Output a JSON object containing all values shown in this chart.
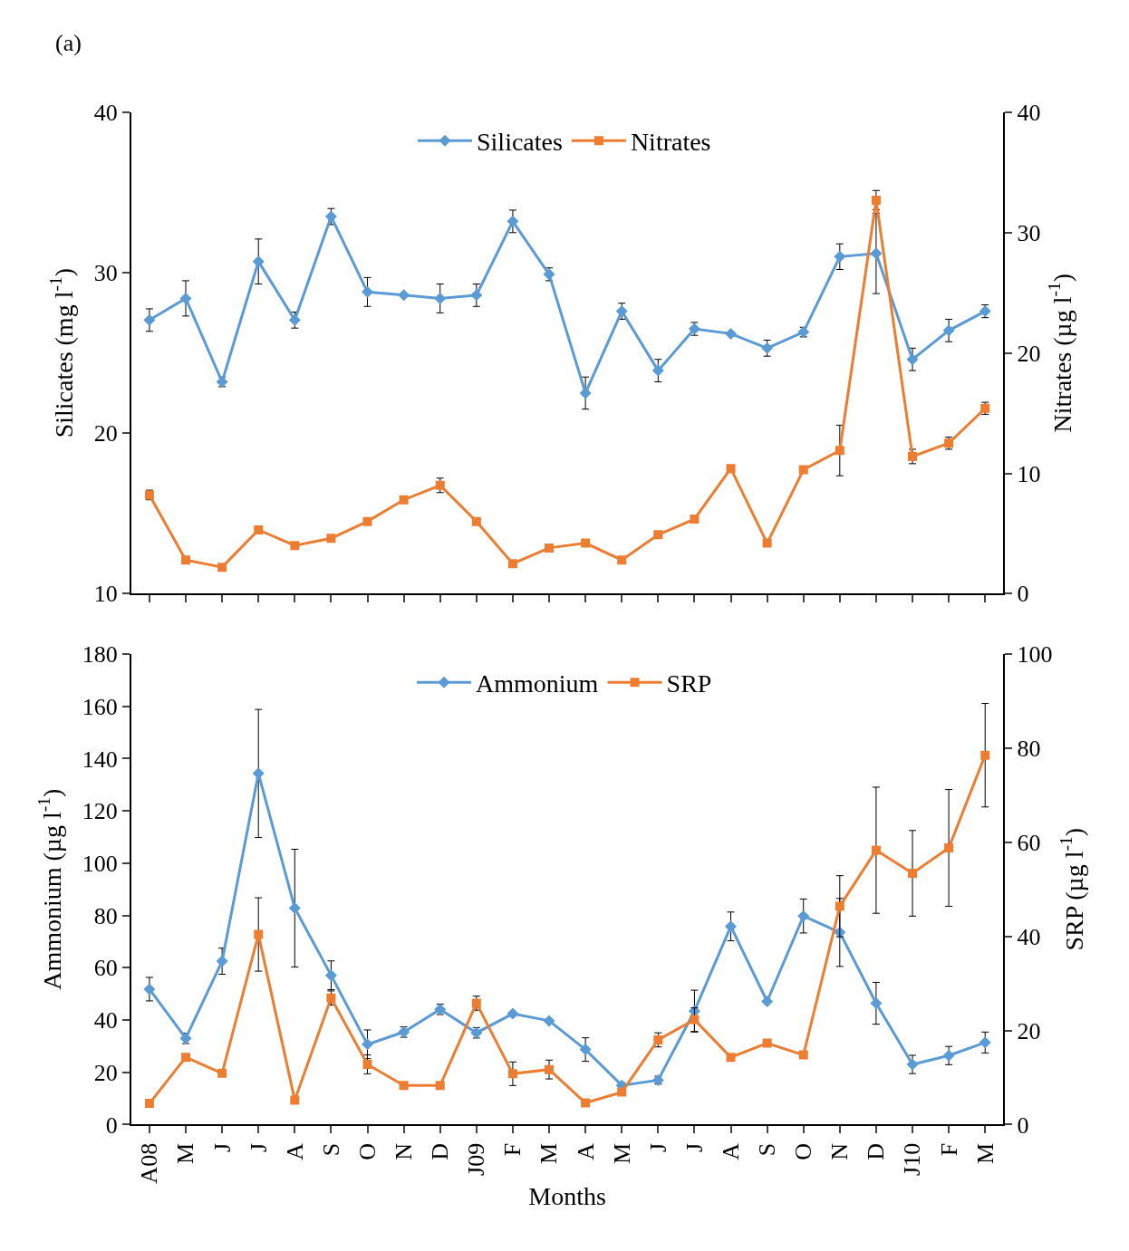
{
  "chart_data": [
    {
      "type": "line",
      "annotations": [
        "(a)"
      ],
      "ylabel": "Silicates (mg l$^{-1}$)",
      "y2label": "Nitrates (µg l$^{-1}$)",
      "categories": [
        null,
        null,
        null,
        null,
        null,
        null,
        null,
        null,
        null,
        null,
        null,
        null,
        null,
        null,
        null,
        null,
        null,
        null,
        null,
        null,
        null,
        null,
        null,
        null
      ],
      "ylim": [
        10,
        40
      ],
      "yticks": [
        10,
        20,
        30,
        40
      ],
      "y2lim": [
        0,
        40
      ],
      "y2ticks": [
        0,
        10,
        20,
        30,
        40
      ],
      "tick_labels": "y",
      "legend": "top",
      "series": [
        {
          "name": "Silicates",
          "color": "#5b9bd5",
          "marker": "diamond",
          "values": [
            27.05,
            28.4,
            23.2,
            30.7,
            27.05,
            33.5,
            28.8,
            28.6,
            28.4,
            28.6,
            33.2,
            29.9,
            22.5,
            27.6,
            23.9,
            26.5,
            26.2,
            25.3,
            26.3,
            31.0,
            31.2,
            24.6,
            26.4,
            27.6
          ],
          "errors": [
            0.7,
            1.1,
            0.3,
            1.4,
            0.5,
            0.5,
            0.9,
            null,
            0.9,
            0.7,
            0.7,
            0.4,
            1.0,
            0.5,
            0.7,
            0.4,
            null,
            0.5,
            0.3,
            0.8,
            2.5,
            0.7,
            0.7,
            0.4
          ]
        },
        {
          "name": "Nitrates",
          "color": "#ed7d31",
          "marker": "square",
          "axis": "y2",
          "values": [
            8.2,
            2.8,
            2.2,
            5.3,
            4.0,
            4.6,
            6.0,
            7.8,
            9.0,
            6.0,
            2.5,
            3.8,
            4.2,
            2.8,
            4.9,
            6.2,
            10.4,
            4.2,
            10.3,
            11.9,
            32.7,
            11.4,
            12.5,
            15.4
          ],
          "errors": [
            0.4,
            null,
            null,
            null,
            null,
            null,
            null,
            null,
            0.6,
            null,
            null,
            null,
            null,
            null,
            null,
            null,
            null,
            null,
            null,
            2.1,
            0.8,
            0.6,
            0.5,
            0.5
          ]
        }
      ]
    },
    {
      "type": "line",
      "xlabel": "Months",
      "ylabel": "Ammonium (µg l$^{-1}$)",
      "y2label": "SRP (µg l$^{-1}$)",
      "categories": [
        "A08",
        "M",
        "J",
        "J",
        "A",
        "S",
        "O",
        "N",
        "D",
        "J09",
        "F",
        "M",
        "A",
        "M",
        "J",
        "J",
        "A",
        "S",
        "O",
        "N",
        "D",
        "J10",
        "F",
        "M"
      ],
      "ylim": [
        0,
        180
      ],
      "yticks": [
        0,
        20,
        40,
        60,
        80,
        100,
        120,
        140,
        160,
        180
      ],
      "y2lim": [
        0,
        100
      ],
      "y2ticks": [
        0,
        20,
        40,
        60,
        80,
        100
      ],
      "legend": "top",
      "series": [
        {
          "name": "Ammonium",
          "color": "#5b9bd5",
          "marker": "diamond",
          "values": [
            51.8,
            33.0,
            62.5,
            134.3,
            82.8,
            57.1,
            30.7,
            35.4,
            44.1,
            35.1,
            42.4,
            39.7,
            28.7,
            15.0,
            17.0,
            43.4,
            75.8,
            47.1,
            79.8,
            73.5,
            46.4,
            23.0,
            26.4,
            31.4
          ],
          "errors": [
            4.5,
            2,
            5,
            24.5,
            22.5,
            5.5,
            5.5,
            2,
            2,
            2,
            null,
            null,
            4.5,
            1,
            1.5,
            8,
            5.5,
            null,
            6.5,
            13,
            8,
            3.5,
            3.5,
            4
          ]
        },
        {
          "name": "SRP",
          "color": "#ed7d31",
          "marker": "square",
          "axis": "y2",
          "values": [
            4.5,
            14.3,
            10.9,
            40.4,
            5.2,
            26.9,
            12.8,
            8.3,
            8.3,
            25.8,
            10.8,
            11.7,
            4.6,
            6.9,
            18.0,
            22.3,
            14.3,
            17.3,
            14.8,
            46.4,
            58.3,
            53.4,
            58.8,
            78.5
          ],
          "errors": [
            null,
            null,
            null,
            7.8,
            null,
            1.5,
            2,
            null,
            null,
            1.5,
            2.5,
            2,
            null,
            null,
            1.5,
            2.5,
            null,
            null,
            null,
            6.5,
            13.4,
            9.1,
            12.4,
            11
          ]
        }
      ]
    }
  ]
}
